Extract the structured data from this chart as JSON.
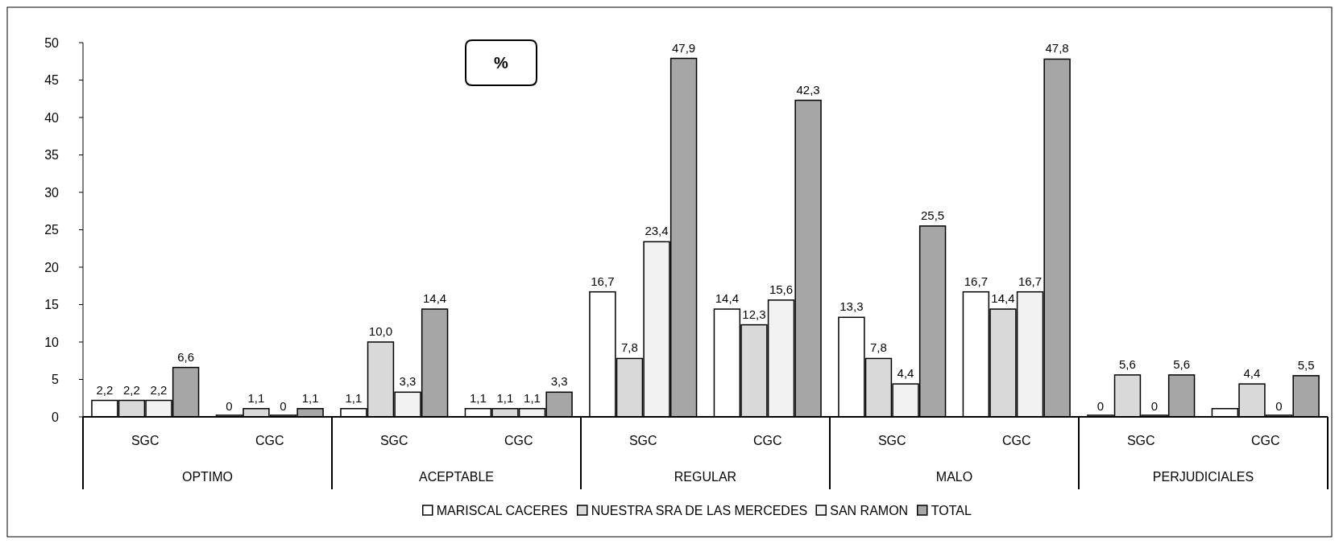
{
  "chart_data": {
    "type": "bar",
    "title": "%",
    "categories": [
      "SGC",
      "CGC",
      "SGC",
      "CGC",
      "SGC",
      "CGC",
      "SGC",
      "CGC",
      "SGC",
      "CGC"
    ],
    "annotations": [
      "OPTIMO",
      "ACEPTABLE",
      "REGULAR",
      "MALO",
      "PERJUDICIALES"
    ],
    "series": [
      {
        "name": "MARISCAL CACERES",
        "color": "#ffffff",
        "values": [
          2.2,
          0,
          1.1,
          1.1,
          16.7,
          14.4,
          13.3,
          16.7,
          0,
          1.1
        ],
        "value_labels": [
          "2,2",
          "0",
          "1,1",
          "1,1",
          "16,7",
          "14,4",
          "13,3",
          "16,7",
          "0",
          null
        ]
      },
      {
        "name": "NUESTRA SRA DE LAS MERCEDES",
        "color": "#d9d9d9",
        "values": [
          2.2,
          1.1,
          10.0,
          1.1,
          7.8,
          12.3,
          7.8,
          14.4,
          5.6,
          4.4
        ],
        "value_labels": [
          "2,2",
          "1,1",
          "10,0",
          "1,1",
          "7,8",
          "12,3",
          "7,8",
          "14,4",
          "5,6",
          "4,4"
        ]
      },
      {
        "name": "SAN RAMON",
        "color": "#f2f2f2",
        "values": [
          2.2,
          0,
          3.3,
          1.1,
          23.4,
          15.6,
          4.4,
          16.7,
          0,
          0
        ],
        "value_labels": [
          "2,2",
          "0",
          "3,3",
          "1,1",
          "23,4",
          "15,6",
          "4,4",
          "16,7",
          "0",
          "0"
        ]
      },
      {
        "name": "TOTAL",
        "color": "#a6a6a6",
        "values": [
          6.6,
          1.1,
          14.4,
          3.3,
          47.9,
          42.3,
          25.5,
          47.8,
          5.6,
          5.5
        ],
        "value_labels": [
          "6,6",
          "1,1",
          "14,4",
          "3,3",
          "47,9",
          "42,3",
          "25,5",
          "47,8",
          "5,6",
          "5,5"
        ]
      }
    ],
    "ylim": [
      0,
      50
    ],
    "yticks": [
      0,
      5,
      10,
      15,
      20,
      25,
      30,
      35,
      40,
      45,
      50
    ],
    "grid": false,
    "legend": "bottom"
  }
}
